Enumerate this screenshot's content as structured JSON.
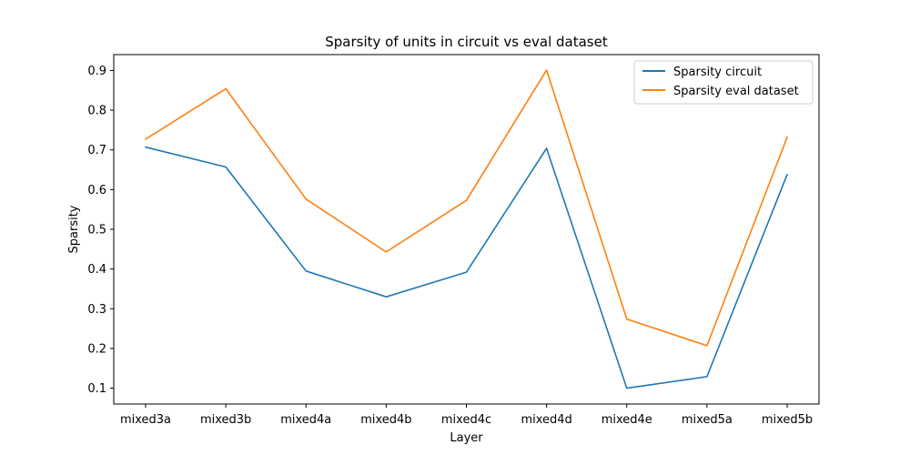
{
  "chart_data": {
    "type": "line",
    "title": "Sparsity of units in circuit vs eval dataset",
    "xlabel": "Layer",
    "ylabel": "Sparsity",
    "categories": [
      "mixed3a",
      "mixed3b",
      "mixed4a",
      "mixed4b",
      "mixed4c",
      "mixed4d",
      "mixed4e",
      "mixed5a",
      "mixed5b"
    ],
    "ylim": [
      0.06,
      0.94
    ],
    "yticks": [
      "0.1",
      "0.2",
      "0.3",
      "0.4",
      "0.5",
      "0.6",
      "0.7",
      "0.8",
      "0.9"
    ],
    "grid": false,
    "legend_position": "top-right",
    "series": [
      {
        "name": "Sparsity circuit",
        "color": "#1f77b4",
        "values": [
          0.707,
          0.657,
          0.395,
          0.33,
          0.392,
          0.704,
          0.1,
          0.129,
          0.638
        ]
      },
      {
        "name": "Sparsity eval dataset",
        "color": "#ff7f0e",
        "values": [
          0.727,
          0.854,
          0.576,
          0.443,
          0.573,
          0.901,
          0.274,
          0.207,
          0.732
        ]
      }
    ]
  }
}
